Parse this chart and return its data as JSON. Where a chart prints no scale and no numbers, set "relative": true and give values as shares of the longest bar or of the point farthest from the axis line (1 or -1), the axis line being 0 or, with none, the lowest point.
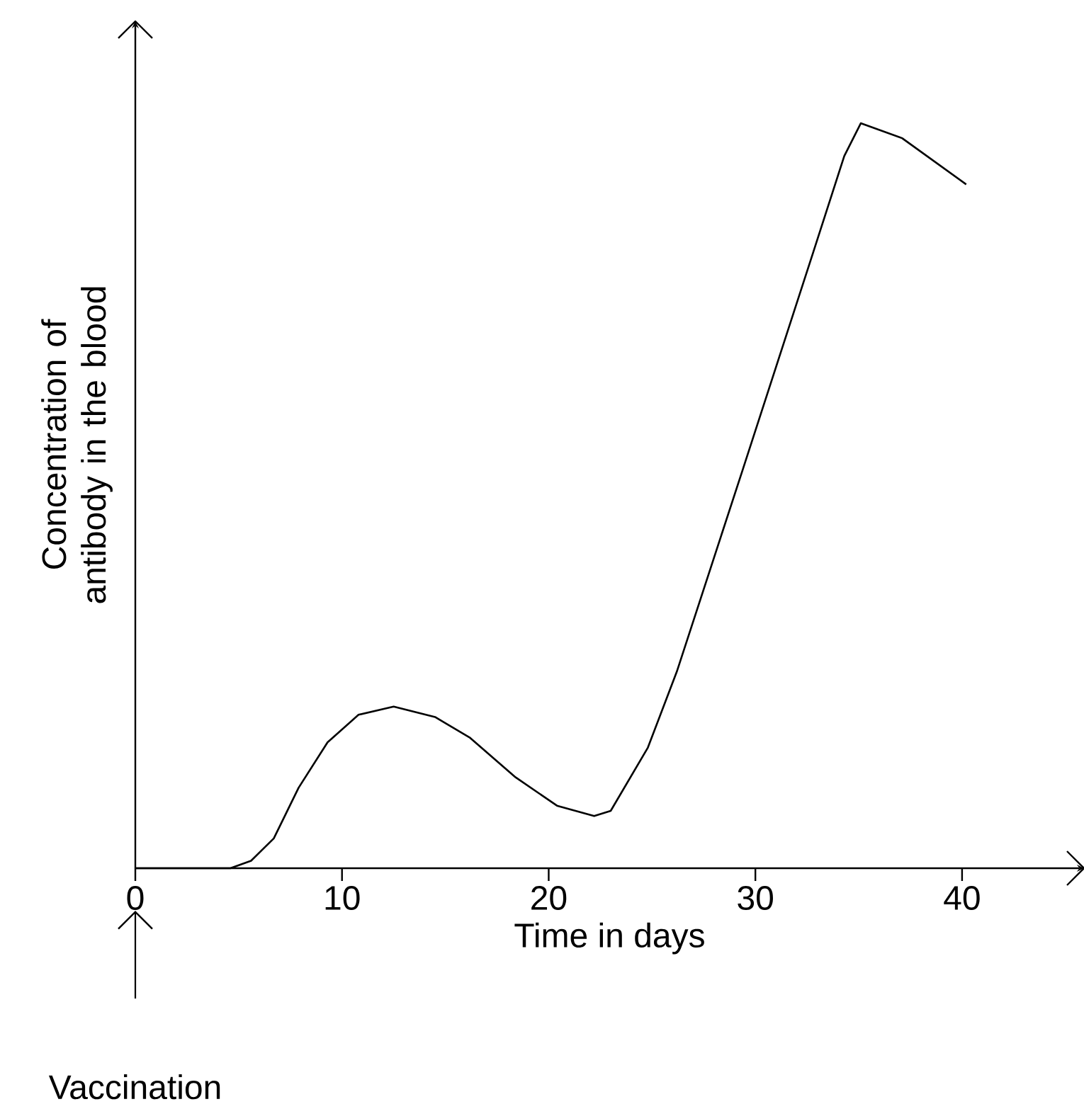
{
  "chart_data": {
    "type": "line",
    "relative": true,
    "xlabel": "Time in days",
    "ylabel": "Concentration of antibody in the blood",
    "xlim": [
      0,
      45.9
    ],
    "xticks": [
      0,
      10,
      20,
      30,
      40
    ],
    "annotations": [
      "Vaccination"
    ],
    "series": [
      {
        "color": "#000000",
        "x": [
          0,
          4.6,
          5.6,
          6.7,
          7.9,
          9.3,
          10.8,
          12.5,
          14.5,
          16.2,
          18.4,
          20.4,
          22.2,
          23.0,
          24.8,
          26.2,
          29.4,
          32.8,
          34.3,
          35.1,
          37.1,
          40.2
        ],
        "values": [
          0,
          0,
          0.01,
          0.04,
          0.108,
          0.169,
          0.206,
          0.217,
          0.203,
          0.175,
          0.122,
          0.084,
          0.07,
          0.077,
          0.162,
          0.264,
          0.536,
          0.827,
          0.956,
          1,
          0.98,
          0.918
        ]
      }
    ]
  }
}
